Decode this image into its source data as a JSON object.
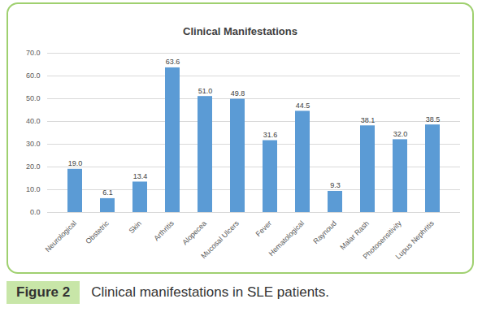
{
  "chart_data": {
    "type": "bar",
    "title": "Clinical Manifestations",
    "categories": [
      "Neurological",
      "Obstetric",
      "Skin",
      "Arthritis",
      "Alopecea",
      "Mucosal Ulcers",
      "Fever",
      "Hematological",
      "Raynoud",
      "Malar Rash",
      "Photosensitivity",
      "Lupus Nephritis"
    ],
    "values": [
      19.0,
      6.1,
      13.4,
      63.6,
      51.0,
      49.8,
      31.6,
      44.5,
      9.3,
      38.1,
      32.0,
      38.5
    ],
    "value_labels": [
      "19.0",
      "6.1",
      "13.4",
      "63.6",
      "51.0",
      "49.8",
      "31.6",
      "44.5",
      "9.3",
      "38.1",
      "32.0",
      "38.5"
    ],
    "data_labels": true,
    "color": "#5b9bd5",
    "ylim": [
      0,
      70
    ],
    "yticks": [
      {
        "value": 0,
        "label": "0.0"
      },
      {
        "value": 10,
        "label": "10.0"
      },
      {
        "value": 20,
        "label": "20.0"
      },
      {
        "value": 30,
        "label": "30.0"
      },
      {
        "value": 40,
        "label": "40.0"
      },
      {
        "value": 50,
        "label": "50.0"
      },
      {
        "value": 60,
        "label": "60.0"
      },
      {
        "value": 70,
        "label": "70.0"
      }
    ],
    "grid": true
  },
  "caption": {
    "label": "Figure 2",
    "text": "Clinical manifestations in SLE patients."
  }
}
